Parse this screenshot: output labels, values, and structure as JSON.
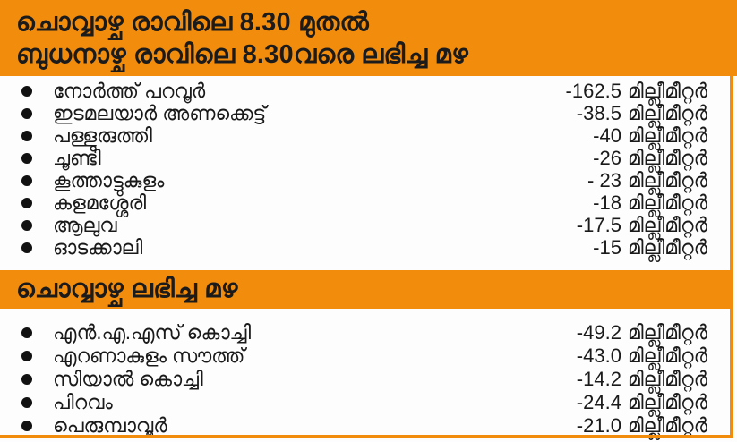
{
  "page": {
    "accent_color": "#F28C0D",
    "text_color": "#1A1A1A",
    "background_color": "#FFFFFF"
  },
  "header": {
    "title_line1": "ചൊവ്വാഴ്ച രാവിലെ 8.30 മുതൽ",
    "title_line2": "ബുധനാഴ്ച രാവിലെ 8.30വരെ ലഭിച്ച മഴ"
  },
  "sections": [
    {
      "items": [
        {
          "place": "നോർത്ത് പറവൂർ",
          "amount": "-162.5",
          "unit": "മില്ലീമീറ്റർ"
        },
        {
          "place": "ഇടമലയാർ അണക്കെട്ട്",
          "amount": "-38.5",
          "unit": "മില്ലീമീറ്റർ"
        },
        {
          "place": "പള്ളുരുത്തി",
          "amount": "-40",
          "unit": "മില്ലീമീറ്റർ"
        },
        {
          "place": "ചൂണ്ടി",
          "amount": "-26",
          "unit": "മില്ലീമീറ്റർ"
        },
        {
          "place": "കൂത്താട്ടുകുളം",
          "amount": "- 23",
          "unit": "മില്ലീമീറ്റർ"
        },
        {
          "place": "കളമശ്ശേരി",
          "amount": "-18",
          "unit": "മില്ലീമീറ്റർ"
        },
        {
          "place": "ആലുവ",
          "amount": "-17.5",
          "unit": "മില്ലീമീറ്റർ"
        },
        {
          "place": "ഓടക്കാലി",
          "amount": "-15",
          "unit": "മില്ലീമീറ്റർ"
        }
      ]
    },
    {
      "title": "ചൊവ്വാഴ്ച ലഭിച്ച മഴ",
      "items": [
        {
          "place": "എൻ.എ.എസ് കൊച്ചി",
          "amount": "-49.2",
          "unit": "മില്ലീമീറ്റർ"
        },
        {
          "place": "എറണാകുളം സൗത്ത്",
          "amount": "-43.0",
          "unit": "മില്ലീമീറ്റർ"
        },
        {
          "place": "സിയാൽ കൊച്ചി",
          "amount": "-14.2",
          "unit": "മില്ലീമീറ്റർ"
        },
        {
          "place": "പിറവം",
          "amount": "-24.4",
          "unit": "മില്ലീമീറ്റർ"
        },
        {
          "place": "പെരുമ്പാവൂർ",
          "amount": "-21.0",
          "unit": "മില്ലീമീറ്റർ"
        }
      ]
    }
  ],
  "chart_data": [
    {
      "type": "table",
      "title": "ചൊവ്വാഴ്ച രാവിലെ 8.30 മുതൽ ബുധനാഴ്ച രാവിലെ 8.30വരെ ലഭിച്ച മഴ",
      "unit": "മില്ലീമീറ്റർ (mm)",
      "categories": [
        "നോർത്ത് പറവൂർ",
        "ഇടമലയാർ അണക്കെട്ട്",
        "പള്ളുരുത്തി",
        "ചൂണ്ടി",
        "കൂത്താട്ടുകുളം",
        "കളമശ്ശേരി",
        "ആലുവ",
        "ഓടക്കാലി"
      ],
      "values": [
        162.5,
        38.5,
        40,
        26,
        23,
        18,
        17.5,
        15
      ]
    },
    {
      "type": "table",
      "title": "ചൊവ്വാഴ്ച ലഭിച്ച മഴ",
      "unit": "മില്ലീമീറ്റർ (mm)",
      "categories": [
        "എൻ.എ.എസ് കൊച്ചി",
        "എറണാകുളം സൗത്ത്",
        "സിയാൽ കൊച്ചി",
        "പിറവം",
        "പെരുമ്പാവൂർ"
      ],
      "values": [
        49.2,
        43.0,
        14.2,
        24.4,
        21.0
      ]
    }
  ]
}
